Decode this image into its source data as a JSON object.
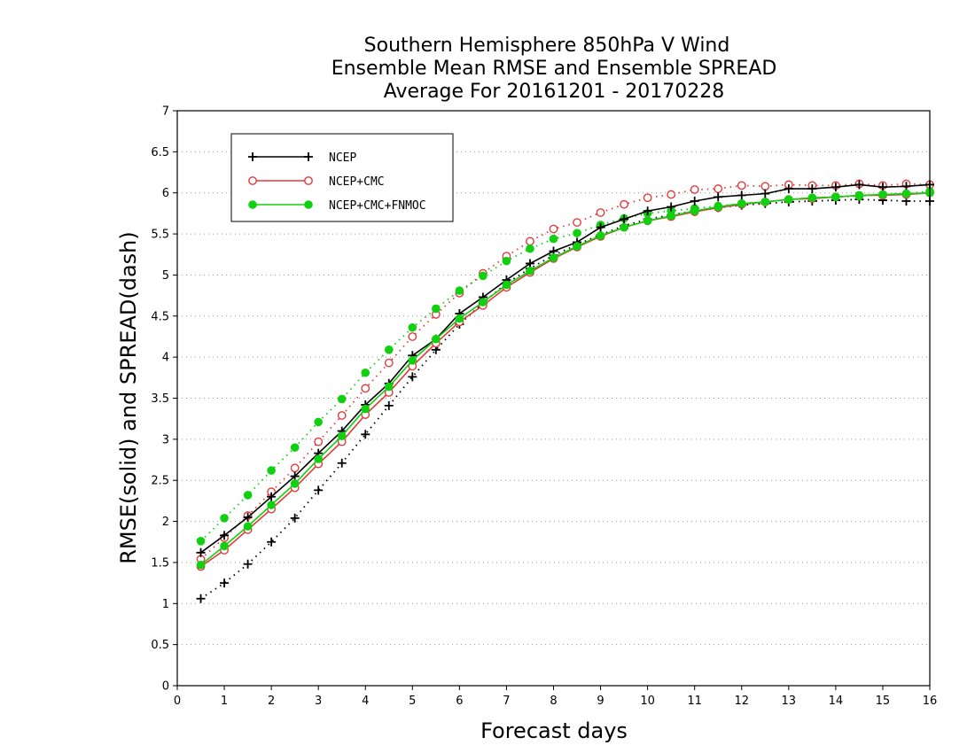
{
  "chart_data": {
    "type": "line",
    "title": [
      "Southern Hemisphere 850hPa V Wind",
      "Ensemble Mean RMSE and Ensemble SPREAD",
      "Average For 20161201 - 20170228"
    ],
    "xlabel": "Forecast days",
    "ylabel": "RMSE(solid) and SPREAD(dash)",
    "xlim": [
      0,
      16
    ],
    "ylim": [
      0,
      7
    ],
    "xticks": [
      "0",
      "1",
      "2",
      "3",
      "4",
      "5",
      "6",
      "7",
      "8",
      "9",
      "10",
      "11",
      "12",
      "13",
      "14",
      "15",
      "16"
    ],
    "yticks": [
      "0",
      "0.5",
      "1",
      "1.5",
      "2",
      "2.5",
      "3",
      "3.5",
      "4",
      "4.5",
      "5",
      "5.5",
      "6",
      "6.5",
      "7"
    ],
    "grid": true,
    "legend_position": "top-left",
    "x": [
      0.5,
      1,
      1.5,
      2,
      2.5,
      3,
      3.5,
      4,
      4.5,
      5,
      5.5,
      6,
      6.5,
      7,
      7.5,
      8,
      8.5,
      9,
      9.5,
      10,
      10.5,
      11,
      11.5,
      12,
      12.5,
      13,
      13.5,
      14,
      14.5,
      15,
      15.5,
      16
    ],
    "series": [
      {
        "name": "NCEP",
        "color": "#000000",
        "marker": "plus",
        "rmse": [
          1.62,
          1.83,
          2.05,
          2.3,
          2.55,
          2.83,
          3.1,
          3.42,
          3.68,
          4.02,
          4.22,
          4.53,
          4.73,
          4.94,
          5.14,
          5.29,
          5.4,
          5.58,
          5.68,
          5.78,
          5.83,
          5.9,
          5.95,
          5.97,
          5.99,
          6.05,
          6.05,
          6.07,
          6.1,
          6.07,
          6.08,
          6.1
        ],
        "spread": [
          1.06,
          1.25,
          1.48,
          1.75,
          2.04,
          2.38,
          2.71,
          3.06,
          3.41,
          3.76,
          4.09,
          4.4,
          4.66,
          4.9,
          5.08,
          5.24,
          5.37,
          5.49,
          5.6,
          5.68,
          5.73,
          5.78,
          5.82,
          5.85,
          5.87,
          5.89,
          5.9,
          5.91,
          5.92,
          5.91,
          5.9,
          5.9
        ]
      },
      {
        "name": "NCEP+CMC",
        "color": "#e03c3c",
        "marker": "circle",
        "rmse": [
          1.45,
          1.65,
          1.9,
          2.15,
          2.41,
          2.7,
          2.97,
          3.3,
          3.57,
          3.89,
          4.17,
          4.43,
          4.63,
          4.85,
          5.03,
          5.2,
          5.34,
          5.47,
          5.58,
          5.66,
          5.71,
          5.77,
          5.82,
          5.86,
          5.89,
          5.92,
          5.93,
          5.95,
          5.97,
          5.97,
          5.98,
          6.0
        ],
        "spread": [
          1.54,
          1.8,
          2.07,
          2.36,
          2.65,
          2.97,
          3.29,
          3.62,
          3.93,
          4.25,
          4.52,
          4.78,
          5.02,
          5.23,
          5.41,
          5.56,
          5.64,
          5.76,
          5.86,
          5.94,
          5.98,
          6.04,
          6.05,
          6.09,
          6.08,
          6.1,
          6.09,
          6.09,
          6.11,
          6.09,
          6.11,
          6.1
        ]
      },
      {
        "name": "NCEP+CMC+FNMOC",
        "color": "#10d010",
        "marker": "filled-circle",
        "rmse": [
          1.47,
          1.7,
          1.94,
          2.2,
          2.46,
          2.76,
          3.04,
          3.37,
          3.64,
          3.96,
          4.22,
          4.47,
          4.67,
          4.88,
          5.05,
          5.21,
          5.35,
          5.48,
          5.58,
          5.66,
          5.72,
          5.78,
          5.83,
          5.87,
          5.89,
          5.92,
          5.94,
          5.95,
          5.97,
          5.98,
          5.99,
          6.0
        ],
        "spread": [
          1.76,
          2.04,
          2.32,
          2.62,
          2.9,
          3.21,
          3.49,
          3.81,
          4.09,
          4.36,
          4.59,
          4.81,
          4.99,
          5.17,
          5.32,
          5.44,
          5.51,
          5.61,
          5.69,
          5.75,
          5.78,
          5.81,
          5.84,
          5.87,
          5.89,
          5.92,
          5.94,
          5.95,
          5.96,
          5.98,
          5.99,
          6.02
        ]
      }
    ]
  }
}
